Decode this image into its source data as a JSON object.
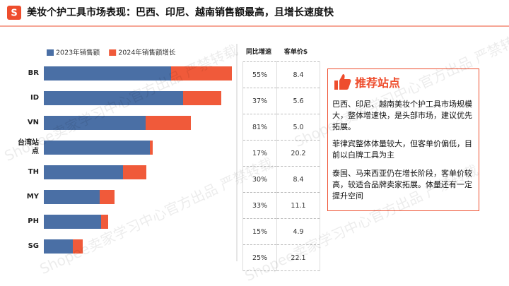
{
  "header": {
    "title": "美妆个护工具市场表现：巴西、印尼、越南销售额最高，且增长速度快"
  },
  "watermark": "Shopee卖家学习中心官方出品 严禁转载",
  "chart_data": {
    "type": "stacked-bar-horizontal",
    "categories": [
      "BR",
      "ID",
      "VN",
      "台湾站点",
      "TH",
      "MY",
      "PH",
      "SG"
    ],
    "series": [
      {
        "name": "2023年销售额",
        "color": "#4a6fa5",
        "values": [
          180,
          197,
          144,
          150,
          112,
          79,
          81,
          41
        ]
      },
      {
        "name": "2024年销售额增长",
        "color": "#f05a3a",
        "values": [
          86,
          54,
          64,
          4,
          33,
          21,
          10,
          14
        ]
      }
    ],
    "xlim": [
      0,
      270
    ]
  },
  "table": {
    "headers": [
      "同比增速",
      "客单价$"
    ],
    "rows": [
      [
        "55%",
        "8.4"
      ],
      [
        "37%",
        "5.6"
      ],
      [
        "81%",
        "5.0"
      ],
      [
        "17%",
        "20.2"
      ],
      [
        "30%",
        "8.4"
      ],
      [
        "33%",
        "11.1"
      ],
      [
        "15%",
        "4.9"
      ],
      [
        "25%",
        "22.1"
      ]
    ]
  },
  "panel": {
    "title": "推荐站点",
    "paragraphs": [
      "巴西、印尼、越南美妆个护工具市场规模大，整体增速快，是头部市场，建议优先拓展。",
      "菲律宾整体体量较大，但客单价偏低，目前以白牌工具为主",
      "泰国、马来西亚仍在增长阶段，客单价较高，较适合品牌卖家拓展。体量还有一定提升空间"
    ]
  }
}
